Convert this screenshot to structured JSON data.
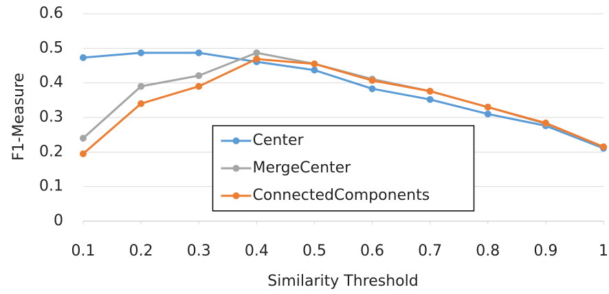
{
  "chart_data": {
    "type": "line",
    "x": [
      0.1,
      0.2,
      0.3,
      0.4,
      0.5,
      0.6,
      0.7,
      0.8,
      0.9,
      1
    ],
    "series": [
      {
        "name": "Center",
        "color": "#5b9bd5",
        "values": [
          0.473,
          0.487,
          0.487,
          0.461,
          0.437,
          0.383,
          0.352,
          0.31,
          0.276,
          0.211
        ]
      },
      {
        "name": "MergeCenter",
        "color": "#a5a5a5",
        "values": [
          0.24,
          0.39,
          0.421,
          0.487,
          0.455,
          0.411,
          0.376,
          0.33,
          0.282,
          0.215
        ]
      },
      {
        "name": "ConnectedComponents",
        "color": "#ed7d31",
        "values": [
          0.195,
          0.34,
          0.39,
          0.469,
          0.455,
          0.407,
          0.376,
          0.33,
          0.284,
          0.215
        ]
      }
    ],
    "xlabel": "Similarity Threshold",
    "ylabel": "F1-Measure",
    "xlim": [
      0.1,
      1
    ],
    "xticks": [
      0.1,
      0.2,
      0.3,
      0.4,
      0.5,
      0.6,
      0.7,
      0.8,
      0.9,
      1
    ],
    "ylim": [
      0,
      0.6
    ],
    "yticks": [
      0,
      0.1,
      0.2,
      0.3,
      0.4,
      0.5,
      0.6
    ],
    "grid": true,
    "legend": "center"
  }
}
